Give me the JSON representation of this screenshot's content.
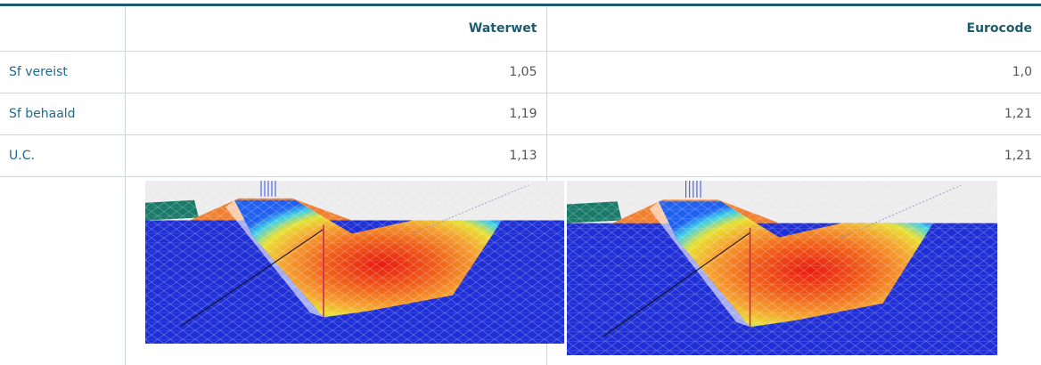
{
  "table": {
    "headers": [
      "Waterwet",
      "Eurocode"
    ],
    "rows": [
      {
        "label": "Sf vereist",
        "values": [
          "1,05",
          "1,0"
        ]
      },
      {
        "label": "Sf behaald",
        "values": [
          "1,19",
          "1,21"
        ]
      },
      {
        "label": "U.C.",
        "values": [
          "1,13",
          "1,21"
        ]
      }
    ]
  }
}
